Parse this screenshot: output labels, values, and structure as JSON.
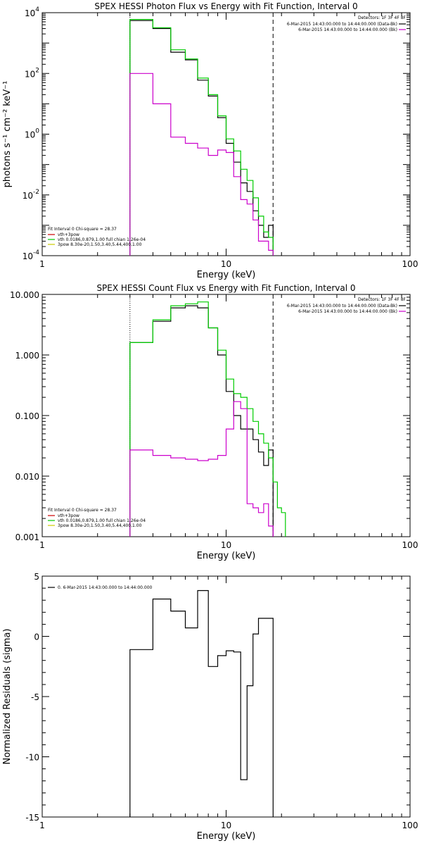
{
  "chart_data": [
    {
      "type": "line",
      "title": "SPEX HESSI Photon Flux vs Energy with Fit Function, Interval 0",
      "xlabel": "Energy (keV)",
      "ylabel": "photons s⁻¹ cm⁻² keV⁻¹",
      "xscale": "log",
      "yscale": "log",
      "xlim": [
        1,
        100
      ],
      "ylim": [
        0.0001,
        10000
      ],
      "x_ticks": [
        1,
        10,
        100
      ],
      "x_tick_labels": [
        "1",
        "10",
        "100"
      ],
      "y_ticks": [
        0.0001,
        0.01,
        1,
        100,
        10000
      ],
      "y_tick_labels": [
        {
          "base": "10",
          "exp": "-4"
        },
        {
          "base": "10",
          "exp": "-2"
        },
        {
          "base": "10",
          "exp": "0"
        },
        {
          "base": "10",
          "exp": "2"
        },
        {
          "base": "10",
          "exp": "4"
        }
      ],
      "vlines": [
        {
          "x": 3,
          "style": "dotted"
        },
        {
          "x": 18,
          "style": "dashed"
        }
      ],
      "legend_top_right": {
        "header": "Detectors: 1F 3F 4F 8F",
        "entries": [
          {
            "text": "6-Mar-2015 14:43:00.000 to 14:44:00.000 (Data-Bk)",
            "color": "#000000"
          },
          {
            "text": "6-Mar-2015 14:43:00.000 to 14:44:00.000 (Bk)",
            "color": "#cc00cc"
          }
        ]
      },
      "legend_bottom_left": {
        "header": "Fit Interval 0   Chi-square = 28.37",
        "entries": [
          {
            "text": "vth+3pow",
            "color": "#cc0000"
          },
          {
            "text": "vth 0.0186,0.879,1.00  full chian 1.26e-04",
            "color": "#00cc00"
          },
          {
            "text": "3pow 8.30e-20,1.50,3.40,5.44,400,1.00",
            "color": "#cccc00"
          }
        ]
      },
      "series": [
        {
          "color": "#000000",
          "edges": [
            3,
            4,
            5,
            6,
            7,
            8,
            9,
            10,
            11,
            12,
            13,
            14,
            15,
            16,
            17,
            18
          ],
          "values": [
            5500,
            3000,
            500,
            280,
            60,
            18,
            3.5,
            0.5,
            0.12,
            0.025,
            0.013,
            0.003,
            0.001,
            0.0004,
            0.001
          ]
        },
        {
          "color": "#00cc00",
          "edges": [
            3,
            4,
            5,
            6,
            7,
            8,
            9,
            10,
            11,
            12,
            13,
            14,
            15,
            16,
            17,
            18
          ],
          "values": [
            6000,
            3200,
            600,
            300,
            70,
            20,
            4,
            0.7,
            0.28,
            0.07,
            0.03,
            0.008,
            0.002,
            0.0006,
            0.0004
          ]
        },
        {
          "color": "#cc00cc",
          "edges": [
            3,
            4,
            5,
            6,
            7,
            8,
            9,
            10,
            11,
            12,
            13,
            14,
            15,
            16,
            17,
            18
          ],
          "values": [
            100,
            10,
            0.8,
            0.5,
            0.35,
            0.2,
            0.3,
            0.25,
            0.04,
            0.007,
            0.005,
            0.0015,
            0.0003,
            0.0003,
            0.00015
          ]
        }
      ]
    },
    {
      "type": "line",
      "title": "SPEX HESSI Count Flux vs Energy with Fit Function, Interval 0",
      "xlabel": "Energy (keV)",
      "ylabel": "",
      "xscale": "log",
      "yscale": "log",
      "xlim": [
        1,
        100
      ],
      "ylim": [
        0.001,
        10
      ],
      "x_ticks": [
        1,
        10,
        100
      ],
      "x_tick_labels": [
        "1",
        "10",
        "100"
      ],
      "y_ticks": [
        0.001,
        0.01,
        0.1,
        1,
        10
      ],
      "y_tick_labels": [
        {
          "base": "0.001"
        },
        {
          "base": "0.010"
        },
        {
          "base": "0.100"
        },
        {
          "base": "1.000"
        },
        {
          "base": "10.000"
        }
      ],
      "vlines": [
        {
          "x": 3,
          "style": "dotted"
        },
        {
          "x": 18,
          "style": "dashed"
        }
      ],
      "legend_top_right": {
        "header": "Detectors: 1F 3F 4F 8F",
        "entries": [
          {
            "text": "6-Mar-2015 14:43:00.000 to 14:44:00.000 (Data-Bk)",
            "color": "#000000"
          },
          {
            "text": "6-Mar-2015 14:43:00.000 to 14:44:00.000 (Bk)",
            "color": "#cc00cc"
          }
        ]
      },
      "legend_bottom_left": {
        "header": "Fit Interval 0   Chi-square = 28.37",
        "entries": [
          {
            "text": "vth+3pow",
            "color": "#cc0000"
          },
          {
            "text": "vth 0.0186,0.879,1.00  full chian 1.26e-04",
            "color": "#00cc00"
          },
          {
            "text": "3pow 8.30e-20,1.50,3.40,5.44,400,1.00",
            "color": "#cccc00"
          }
        ]
      },
      "series": [
        {
          "color": "#000000",
          "edges": [
            3,
            4,
            5,
            6,
            7,
            8,
            9,
            10,
            11,
            12,
            13,
            14,
            15,
            16,
            17,
            18
          ],
          "values": [
            1.6,
            3.6,
            6.0,
            6.5,
            6.0,
            2.8,
            1.0,
            0.25,
            0.1,
            0.06,
            0.06,
            0.04,
            0.025,
            0.015,
            0.027
          ]
        },
        {
          "color": "#00cc00",
          "edges": [
            3,
            4,
            5,
            6,
            7,
            8,
            9,
            10,
            11,
            12,
            13,
            14,
            15,
            16,
            17,
            18,
            19,
            20,
            21
          ],
          "values": [
            1.6,
            3.8,
            6.5,
            7.0,
            7.5,
            2.8,
            1.2,
            0.4,
            0.23,
            0.2,
            0.13,
            0.08,
            0.05,
            0.035,
            0.02,
            0.008,
            0.003,
            0.0025
          ]
        },
        {
          "color": "#cc00cc",
          "edges": [
            3,
            4,
            5,
            6,
            7,
            8,
            9,
            10,
            11,
            12,
            13,
            14,
            15,
            16,
            17,
            18
          ],
          "values": [
            0.027,
            0.022,
            0.02,
            0.019,
            0.018,
            0.019,
            0.022,
            0.06,
            0.17,
            0.13,
            0.0035,
            0.003,
            0.0025,
            0.0035,
            0.0015
          ]
        }
      ]
    },
    {
      "type": "line",
      "title": "",
      "xlabel": "Energy (keV)",
      "ylabel": "Normalized Residuals (sigma)",
      "xscale": "log",
      "yscale": "linear",
      "xlim": [
        1,
        100
      ],
      "ylim": [
        -15,
        5
      ],
      "x_ticks": [
        1,
        10,
        100
      ],
      "x_tick_labels": [
        "1",
        "10",
        "100"
      ],
      "y_ticks": [
        -15,
        -10,
        -5,
        0,
        5
      ],
      "y_tick_labels": [
        {
          "base": "-15"
        },
        {
          "base": "-10"
        },
        {
          "base": "-5"
        },
        {
          "base": "0"
        },
        {
          "base": "5"
        }
      ],
      "legend_top_left": {
        "entries": [
          {
            "text": "0. 6-Mar-2015 14:43:00.000 to 14:44:00.000",
            "color": "#000000"
          }
        ]
      },
      "series": [
        {
          "color": "#000000",
          "edges": [
            3,
            4,
            5,
            6,
            7,
            8,
            9,
            10,
            11,
            12,
            13,
            14,
            15,
            16,
            17,
            18
          ],
          "values": [
            -1.1,
            3.1,
            2.1,
            0.7,
            3.8,
            -2.5,
            -1.6,
            -1.2,
            -1.3,
            -11.9,
            -4.1,
            0.2,
            1.5,
            1.5,
            1.5
          ]
        }
      ]
    }
  ]
}
